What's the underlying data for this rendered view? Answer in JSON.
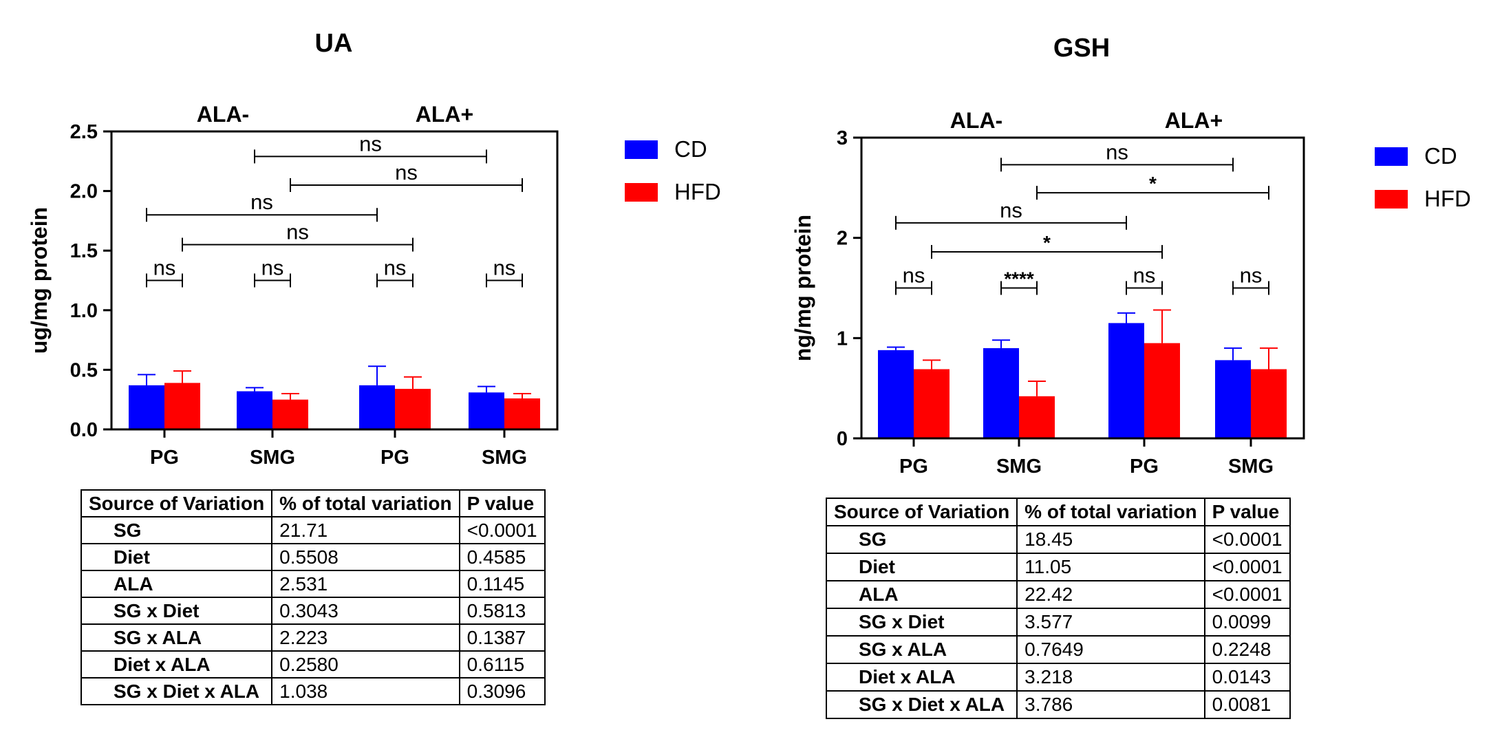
{
  "colors": {
    "CD": "#0000ff",
    "HFD": "#ff0000"
  },
  "chart_data": [
    {
      "type": "bar",
      "title": "UA",
      "ylabel": "ug/mg protein",
      "ylim": [
        0,
        2.5
      ],
      "yticks": [
        "0.0",
        "0.5",
        "1.0",
        "1.5",
        "2.0",
        "2.5"
      ],
      "group_labels": [
        "ALA-",
        "ALA+"
      ],
      "categories": [
        "PG",
        "SMG",
        "PG",
        "SMG"
      ],
      "series": [
        {
          "name": "CD",
          "values": [
            0.37,
            0.32,
            0.37,
            0.31
          ],
          "errors": [
            0.09,
            0.03,
            0.16,
            0.05
          ]
        },
        {
          "name": "HFD",
          "values": [
            0.39,
            0.25,
            0.34,
            0.26
          ],
          "errors": [
            0.1,
            0.05,
            0.1,
            0.04
          ]
        }
      ],
      "comparisons": [
        {
          "from": "CD-0",
          "to": "HFD-0",
          "level": 1.25,
          "label": "ns"
        },
        {
          "from": "CD-1",
          "to": "HFD-1",
          "level": 1.25,
          "label": "ns"
        },
        {
          "from": "CD-2",
          "to": "HFD-2",
          "level": 1.25,
          "label": "ns"
        },
        {
          "from": "CD-3",
          "to": "HFD-3",
          "level": 1.25,
          "label": "ns"
        },
        {
          "from": "HFD-0",
          "to": "HFD-2",
          "level": 1.55,
          "label": "ns"
        },
        {
          "from": "CD-0",
          "to": "CD-2",
          "level": 1.8,
          "label": "ns"
        },
        {
          "from": "HFD-1",
          "to": "HFD-3",
          "level": 2.05,
          "label": "ns"
        },
        {
          "from": "CD-1",
          "to": "CD-3",
          "level": 2.29,
          "label": "ns"
        }
      ]
    },
    {
      "type": "bar",
      "title": "GSH",
      "ylabel": "ng/mg protein",
      "ylim": [
        0,
        3
      ],
      "yticks": [
        "0",
        "1",
        "2",
        "3"
      ],
      "group_labels": [
        "ALA-",
        "ALA+"
      ],
      "categories": [
        "PG",
        "SMG",
        "PG",
        "SMG"
      ],
      "series": [
        {
          "name": "CD",
          "values": [
            0.88,
            0.9,
            1.15,
            0.78
          ],
          "errors": [
            0.03,
            0.08,
            0.1,
            0.12
          ]
        },
        {
          "name": "HFD",
          "values": [
            0.69,
            0.42,
            0.95,
            0.69
          ],
          "errors": [
            0.09,
            0.15,
            0.33,
            0.21
          ]
        }
      ],
      "comparisons": [
        {
          "from": "CD-0",
          "to": "HFD-0",
          "level": 1.5,
          "label": "ns"
        },
        {
          "from": "CD-1",
          "to": "HFD-1",
          "level": 1.5,
          "label": "****"
        },
        {
          "from": "CD-2",
          "to": "HFD-2",
          "level": 1.5,
          "label": "ns"
        },
        {
          "from": "CD-3",
          "to": "HFD-3",
          "level": 1.5,
          "label": "ns"
        },
        {
          "from": "HFD-0",
          "to": "HFD-2",
          "level": 1.86,
          "label": "*"
        },
        {
          "from": "CD-0",
          "to": "CD-2",
          "level": 2.15,
          "label": "ns"
        },
        {
          "from": "HFD-1",
          "to": "HFD-3",
          "level": 2.45,
          "label": "*"
        },
        {
          "from": "CD-1",
          "to": "CD-3",
          "level": 2.73,
          "label": "ns"
        }
      ]
    }
  ],
  "tables": [
    {
      "headers": [
        "Source of Variation",
        "% of total variation",
        "P value"
      ],
      "rows": [
        [
          "SG",
          "21.71",
          "<0.0001"
        ],
        [
          "Diet",
          "0.5508",
          "0.4585"
        ],
        [
          "ALA",
          "2.531",
          "0.1145"
        ],
        [
          "SG x Diet",
          "0.3043",
          "0.5813"
        ],
        [
          "SG x ALA",
          "2.223",
          "0.1387"
        ],
        [
          "Diet x ALA",
          "0.2580",
          "0.6115"
        ],
        [
          "SG x Diet x ALA",
          "1.038",
          "0.3096"
        ]
      ]
    },
    {
      "headers": [
        "Source of Variation",
        "% of total variation",
        "P value"
      ],
      "rows": [
        [
          "SG",
          "18.45",
          "<0.0001"
        ],
        [
          "Diet",
          "11.05",
          "<0.0001"
        ],
        [
          "ALA",
          "22.42",
          "<0.0001"
        ],
        [
          "SG x Diet",
          "3.577",
          "0.0099"
        ],
        [
          "SG x ALA",
          "0.7649",
          "0.2248"
        ],
        [
          "Diet x ALA",
          "3.218",
          "0.0143"
        ],
        [
          "SG x Diet x ALA",
          "3.786",
          "0.0081"
        ]
      ]
    }
  ]
}
